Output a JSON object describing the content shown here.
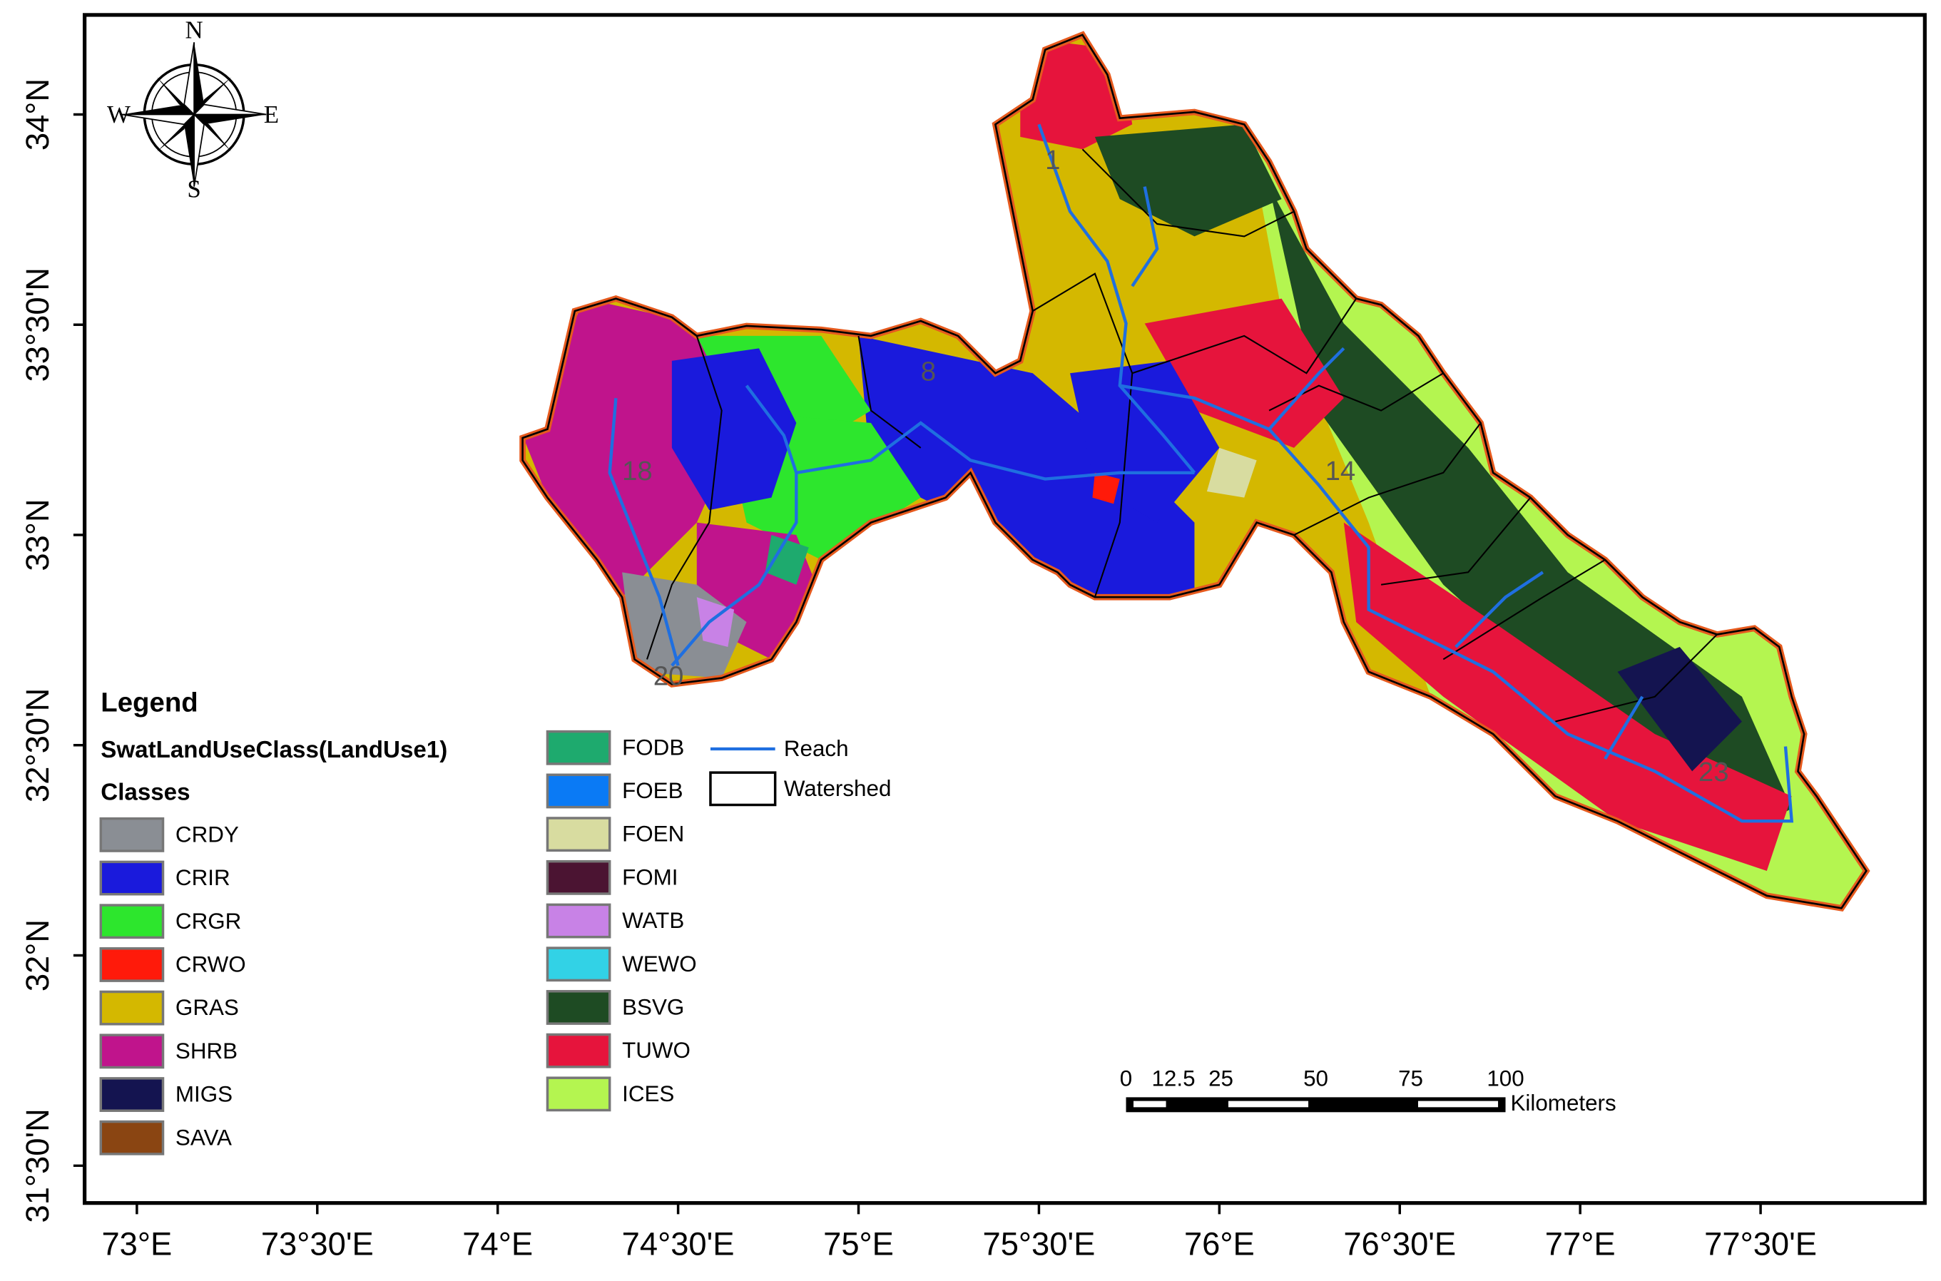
{
  "compass": {
    "n": "N",
    "s": "S",
    "e": "E",
    "w": "W"
  },
  "axes": {
    "lon_ticks": [
      {
        "value": 73,
        "label": "73°E"
      },
      {
        "value": 73.5,
        "label": "73°30'E"
      },
      {
        "value": 74,
        "label": "74°E"
      },
      {
        "value": 74.5,
        "label": "74°30'E"
      },
      {
        "value": 75,
        "label": "75°E"
      },
      {
        "value": 75.5,
        "label": "75°30'E"
      },
      {
        "value": 76,
        "label": "76°E"
      },
      {
        "value": 76.5,
        "label": "76°30'E"
      },
      {
        "value": 77,
        "label": "77°E"
      },
      {
        "value": 77.5,
        "label": "77°30'E"
      }
    ],
    "lat_ticks": [
      {
        "value": 34,
        "label": "34°N"
      },
      {
        "value": 33.5,
        "label": "33°30'N"
      },
      {
        "value": 33,
        "label": "33°N"
      },
      {
        "value": 32.5,
        "label": "32°30'N"
      },
      {
        "value": 32,
        "label": "32°N"
      },
      {
        "value": 31.5,
        "label": "31°30'N"
      }
    ]
  },
  "subbasins": [
    "1",
    "8",
    "18",
    "14",
    "23",
    "20"
  ],
  "legend": {
    "title": "Legend",
    "layer": "SwatLandUseClass(LandUse1)",
    "classes_heading": "Classes",
    "classes": [
      {
        "name": "CRDY",
        "color": "#8a8e94"
      },
      {
        "name": "CRIR",
        "color": "#1a1adc"
      },
      {
        "name": "CRGR",
        "color": "#2de62d"
      },
      {
        "name": "CRWO",
        "color": "#ff1a0a"
      },
      {
        "name": "GRAS",
        "color": "#d4b800"
      },
      {
        "name": "SHRB",
        "color": "#c0148c"
      },
      {
        "name": "MIGS",
        "color": "#141450"
      },
      {
        "name": "SAVA",
        "color": "#8a4512"
      },
      {
        "name": "FODB",
        "color": "#1eaa6e"
      },
      {
        "name": "FOEB",
        "color": "#0a7af5"
      },
      {
        "name": "FOEN",
        "color": "#d8dca0"
      },
      {
        "name": "FOMI",
        "color": "#4b1432"
      },
      {
        "name": "WATB",
        "color": "#c882e6"
      },
      {
        "name": "WEWO",
        "color": "#32d2e6"
      },
      {
        "name": "BSVG",
        "color": "#1e4b23"
      },
      {
        "name": "TUWO",
        "color": "#e6143c"
      },
      {
        "name": "ICES",
        "color": "#b4f550"
      }
    ],
    "features": [
      {
        "name": "Reach",
        "color": "#1f6fe0"
      },
      {
        "name": "Watershed",
        "color": "#000000"
      }
    ]
  },
  "scale_bar": {
    "ticks": [
      0,
      12.5,
      25,
      50,
      75,
      100
    ],
    "unit": "Kilometers"
  }
}
